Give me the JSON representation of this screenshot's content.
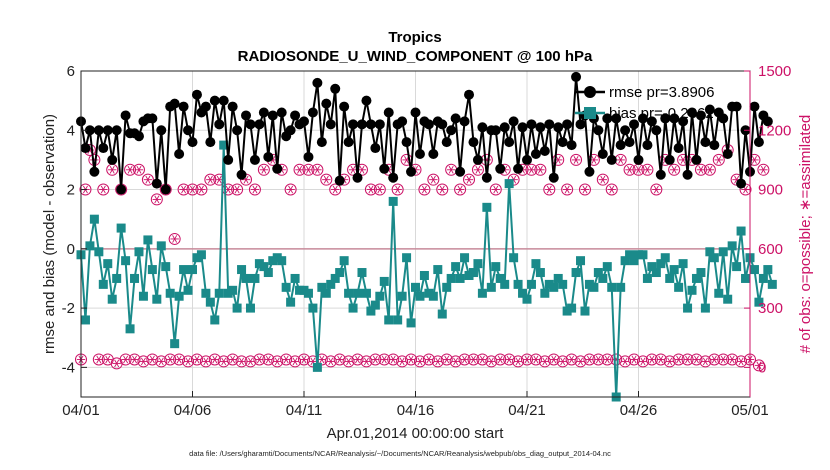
{
  "chart_data": {
    "type": "line",
    "title": "Tropics",
    "subtitle": "RADIOSONDE_U_WIND_COMPONENT @ 100 hPa",
    "xlabel": "Apr.01,2014 00:00:00 start",
    "ylabel_left": "rmse and bias (model - observation)",
    "ylabel_right": "# of obs: o=possible; ∗=assimilated",
    "footnote": "data file: /Users/gharamti/Documents/NCAR/Reanalysis/~/Documents/NCAR/Reanalysis/webpub/obs_diag_output_2014-04.nc",
    "x_tick_labels": [
      "04/01",
      "04/06",
      "04/11",
      "04/16",
      "04/21",
      "04/26",
      "05/01"
    ],
    "x_tick_values": [
      0,
      5,
      10,
      15,
      20,
      25,
      30
    ],
    "xlim": [
      0,
      30
    ],
    "ylim_left": [
      -5,
      6
    ],
    "ylim_right": [
      -150,
      1500
    ],
    "y_ticks_left": [
      "6",
      "4",
      "2",
      "0",
      "-2",
      "-4"
    ],
    "y_tick_values_left": [
      6,
      4,
      2,
      0,
      -2,
      -4
    ],
    "y_ticks_right": [
      "1500",
      "1200",
      "900",
      "600",
      "300",
      "0"
    ],
    "y_tick_values_right": [
      1500,
      1200,
      900,
      600,
      300,
      0
    ],
    "zero_line": 0,
    "legend": {
      "placement": "top-right",
      "entries": [
        "rmse pr=3.8906",
        "bias pr=-0.2362"
      ]
    },
    "colors": {
      "rmse": "#000000",
      "bias": "#1a8a8a",
      "obs": "#cc1166",
      "zero_line": "#c88a9a",
      "grid": "#d9d9d9"
    },
    "series": [
      {
        "name": "rmse pr=3.8906",
        "axis": "left",
        "marker": "circle",
        "values": [
          4.3,
          3.4,
          4.0,
          2.6,
          4.0,
          3.4,
          4.0,
          3.0,
          4.0,
          2.0,
          4.5,
          3.9,
          3.9,
          3.8,
          4.3,
          4.4,
          4.4,
          2.2,
          4.0,
          2.0,
          4.8,
          4.9,
          3.2,
          4.8,
          4.0,
          3.6,
          5.2,
          4.6,
          4.8,
          3.6,
          5.0,
          4.2,
          5.0,
          3.0,
          4.8,
          4.0,
          2.5,
          4.5,
          4.2,
          3.0,
          4.2,
          4.6,
          3.1,
          4.5,
          2.7,
          4.6,
          3.8,
          4.0,
          4.5,
          4.2,
          4.3,
          3.1,
          4.6,
          5.6,
          3.6,
          4.9,
          4.2,
          5.4,
          2.3,
          4.8,
          3.6,
          4.2,
          2.4,
          4.2,
          5.0,
          4.2,
          3.4,
          4.2,
          2.7,
          4.6,
          2.4,
          4.2,
          4.3,
          3.6,
          2.6,
          4.6,
          3.2,
          4.3,
          4.2,
          3.2,
          4.3,
          4.2,
          3.6,
          4.0,
          4.4,
          2.6,
          4.3,
          5.2,
          3.6,
          3.0,
          4.1,
          2.4,
          4.0,
          4.0,
          2.7,
          4.1,
          3.6,
          4.3,
          2.7,
          4.1,
          3.0,
          4.2,
          3.2,
          4.1,
          3.3,
          4.2,
          2.4,
          4.1,
          3.6,
          4.2,
          3.5,
          5.8,
          4.2,
          4.5,
          2.6,
          4.4,
          4.0,
          3.2,
          4.4,
          3.0,
          4.4,
          3.5,
          4.0,
          3.6,
          4.2,
          3.0,
          4.4,
          3.5,
          4.3,
          4.0,
          2.5,
          4.4,
          3.0,
          4.4,
          3.4,
          4.3,
          2.5,
          4.6,
          3.0,
          4.5,
          3.6,
          4.7,
          3.5,
          4.6,
          4.4,
          3.2,
          4.8,
          4.8,
          2.2,
          4.0,
          2.6,
          4.8,
          3.6,
          4.5,
          4.3
        ],
        "x_start": 0,
        "x_step": 0.2
      },
      {
        "name": "bias pr=-0.2362",
        "axis": "left",
        "marker": "square",
        "values": [
          -0.2,
          -2.4,
          0.1,
          1.0,
          -0.1,
          -1.2,
          -0.5,
          -1.7,
          -1.0,
          0.7,
          -0.4,
          -2.7,
          -1.0,
          -0.1,
          -1.6,
          0.3,
          -0.7,
          -1.7,
          0.1,
          -0.6,
          -1.5,
          -3.2,
          -1.6,
          -0.7,
          -1.4,
          -0.7,
          -0.3,
          -0.2,
          -1.5,
          -1.8,
          -2.4,
          -1.5,
          3.5,
          -1.5,
          -1.4,
          -2.0,
          -0.7,
          -1.0,
          -2.0,
          -1.0,
          -0.5,
          -0.6,
          -0.8,
          -0.4,
          -0.3,
          -0.4,
          -1.3,
          -1.8,
          -1.0,
          -1.4,
          -1.4,
          -1.5,
          -2.0,
          -4.0,
          -1.3,
          -1.5,
          -1.2,
          -1.0,
          -0.8,
          -0.4,
          -1.5,
          -2.0,
          -1.5,
          -0.8,
          -1.5,
          -2.1,
          -1.9,
          -1.6,
          -1.1,
          -2.4,
          1.6,
          -2.4,
          -1.6,
          -0.3,
          -2.5,
          -1.3,
          -1.6,
          -0.9,
          -1.5,
          -1.6,
          -0.7,
          -2.2,
          -1.3,
          -1.0,
          -0.6,
          -1.0,
          -0.3,
          -0.9,
          -0.8,
          -0.5,
          -1.5,
          1.4,
          -1.3,
          -0.6,
          -1.0,
          -1.2,
          2.2,
          -0.3,
          -1.2,
          -1.5,
          -1.7,
          -1.2,
          -0.5,
          -0.8,
          -1.5,
          -1.2,
          -1.3,
          -1.0,
          -1.2,
          -2.1,
          -2.0,
          -0.8,
          -0.4,
          -2.1,
          -1.2,
          -1.3,
          -0.8,
          -1.0,
          -0.6,
          -1.3,
          -5.0,
          -1.3,
          -0.4,
          -0.2,
          -0.4,
          -0.2,
          -0.2,
          -1.0,
          -0.6,
          -0.8,
          -0.5,
          -0.3,
          -1.0,
          -0.7,
          -1.3,
          -0.5,
          -2.0,
          -1.4,
          -1.0,
          -0.8,
          -2.0,
          -0.1,
          -0.3,
          -1.5,
          -0.1,
          -1.7,
          0.1,
          -0.6,
          0.6,
          -1.0,
          -0.3,
          -0.7,
          -1.8,
          -1.0,
          -0.7,
          -1.2
        ],
        "x_start": 0,
        "x_step": 0.2
      },
      {
        "name": "# obs possible (o)",
        "axis": "right",
        "marker": "circle-open",
        "values": [
          40,
          900,
          1100,
          1050,
          40,
          900,
          40,
          1000,
          20,
          900,
          40,
          1000,
          40,
          1000,
          30,
          950,
          40,
          850,
          30,
          900,
          40,
          650,
          40,
          900,
          30,
          900,
          40,
          900,
          30,
          950,
          40,
          950,
          30,
          900,
          40,
          900,
          30,
          950,
          30,
          900,
          40,
          1000,
          40,
          1050,
          30,
          1000,
          40,
          900,
          30,
          1000,
          40,
          1000,
          30,
          1000,
          40,
          950,
          30,
          900,
          40,
          950,
          30,
          1000,
          40,
          1000,
          30,
          900,
          40,
          900,
          40,
          1000,
          40,
          900,
          30,
          1050,
          40,
          1000,
          30,
          900,
          40,
          950,
          30,
          900,
          40,
          1000,
          30,
          900,
          40,
          950,
          40,
          1000,
          40,
          1050,
          30,
          900,
          40,
          1000,
          40,
          950,
          30,
          1000,
          40,
          1000,
          40,
          1000,
          30,
          900,
          40,
          1050,
          30,
          900,
          40,
          1050,
          30,
          900,
          40,
          1050,
          40,
          950,
          40,
          900,
          40,
          1050,
          30,
          1000,
          40,
          1000,
          30,
          1000,
          40,
          900,
          40,
          1050,
          30,
          1000,
          40,
          1050,
          40,
          1050,
          40,
          1000,
          30,
          1000,
          40,
          1050,
          40,
          1100,
          40,
          950,
          30,
          900,
          40,
          1050,
          10,
          1000
        ],
        "x_start": 0,
        "x_step": 0.2
      },
      {
        "name": "# obs assimilated (∗)",
        "axis": "right",
        "marker": "asterisk",
        "values": [
          40,
          900,
          1100,
          1050,
          40,
          900,
          40,
          1000,
          20,
          900,
          40,
          1000,
          40,
          1000,
          30,
          950,
          40,
          850,
          30,
          900,
          40,
          650,
          40,
          900,
          30,
          900,
          40,
          900,
          30,
          950,
          40,
          950,
          30,
          900,
          40,
          900,
          30,
          950,
          30,
          900,
          40,
          1000,
          40,
          1050,
          30,
          1000,
          40,
          900,
          30,
          1000,
          40,
          1000,
          30,
          1000,
          40,
          950,
          30,
          900,
          40,
          950,
          30,
          1000,
          40,
          1000,
          30,
          900,
          40,
          900,
          40,
          1000,
          40,
          900,
          30,
          1050,
          40,
          1000,
          30,
          900,
          40,
          950,
          30,
          900,
          40,
          1000,
          30,
          900,
          40,
          950,
          40,
          1000,
          40,
          1050,
          30,
          900,
          40,
          1000,
          40,
          950,
          30,
          1000,
          40,
          1000,
          40,
          1000,
          30,
          900,
          40,
          1050,
          30,
          900,
          40,
          1050,
          30,
          900,
          40,
          1050,
          40,
          950,
          40,
          900,
          40,
          1050,
          30,
          1000,
          40,
          1000,
          30,
          1000,
          40,
          900,
          40,
          1050,
          30,
          1000,
          40,
          1050,
          40,
          1050,
          40,
          1000,
          30,
          1000,
          40,
          1050,
          40,
          1100,
          40,
          950,
          30,
          900,
          40,
          1050,
          10,
          1000
        ],
        "x_start": 0,
        "x_step": 0.2
      }
    ]
  }
}
